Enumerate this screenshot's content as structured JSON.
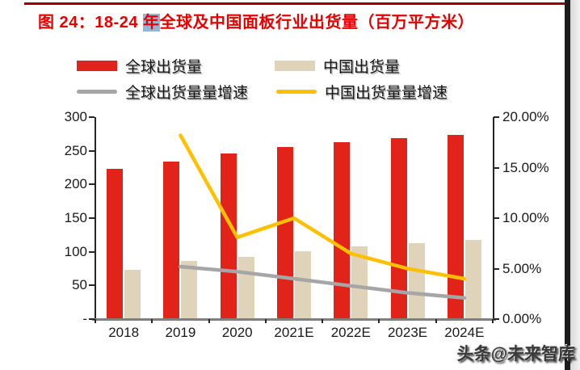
{
  "header": {
    "title_prefix": "图 24：18-24 ",
    "title_highlight": "年",
    "title_suffix": "全球及中国面板行业出货量（百万平方米）"
  },
  "legend": {
    "items": [
      {
        "label": "全球出货量",
        "swatch": "bar",
        "color": "#E2231A"
      },
      {
        "label": "中国出货量",
        "swatch": "bar",
        "color": "#DFD4B9"
      },
      {
        "label": "全球出货量量增速",
        "swatch": "line",
        "color": "#A6A6A6"
      },
      {
        "label": "中国出货量量增速",
        "swatch": "line",
        "color": "#FFC000"
      }
    ]
  },
  "chart_data": {
    "type": "bar",
    "subtype": "bar-line-combo",
    "title": "18-24年全球及中国面板行业出货量（百万平方米）",
    "categories": [
      "2018",
      "2019",
      "2020",
      "2021E",
      "2022E",
      "2023E",
      "2024E"
    ],
    "series": [
      {
        "name": "全球出货量",
        "type": "bar",
        "axis": "left",
        "color": "#E2231A",
        "values": [
          222,
          233,
          245,
          254,
          262,
          268,
          273
        ]
      },
      {
        "name": "中国出货量",
        "type": "bar",
        "axis": "left",
        "color": "#DFD4B9",
        "values": [
          72,
          85,
          91,
          100,
          107,
          112,
          116
        ]
      },
      {
        "name": "全球出货量量增速",
        "type": "line",
        "axis": "right",
        "color": "#A6A6A6",
        "unit": "%",
        "values": [
          null,
          5.2,
          4.7,
          4.0,
          3.3,
          2.6,
          2.1
        ]
      },
      {
        "name": "中国出货量量增速",
        "type": "line",
        "axis": "right",
        "color": "#FFC000",
        "unit": "%",
        "values": [
          null,
          18.2,
          8.1,
          10.0,
          6.5,
          5.0,
          4.0
        ]
      }
    ],
    "left_axis": {
      "min": 0,
      "max": 300,
      "tick_labels": [
        "300",
        "250",
        "200",
        "150",
        "100",
        "50",
        "-"
      ]
    },
    "right_axis": {
      "min": 0,
      "max": 20,
      "tick_labels": [
        "20.00%",
        "15.00%",
        "10.00%",
        "5.00%",
        "0.00%"
      ]
    },
    "grid": false,
    "legend_position": "top"
  },
  "footer": {
    "watermark": "头条@未来智库"
  }
}
